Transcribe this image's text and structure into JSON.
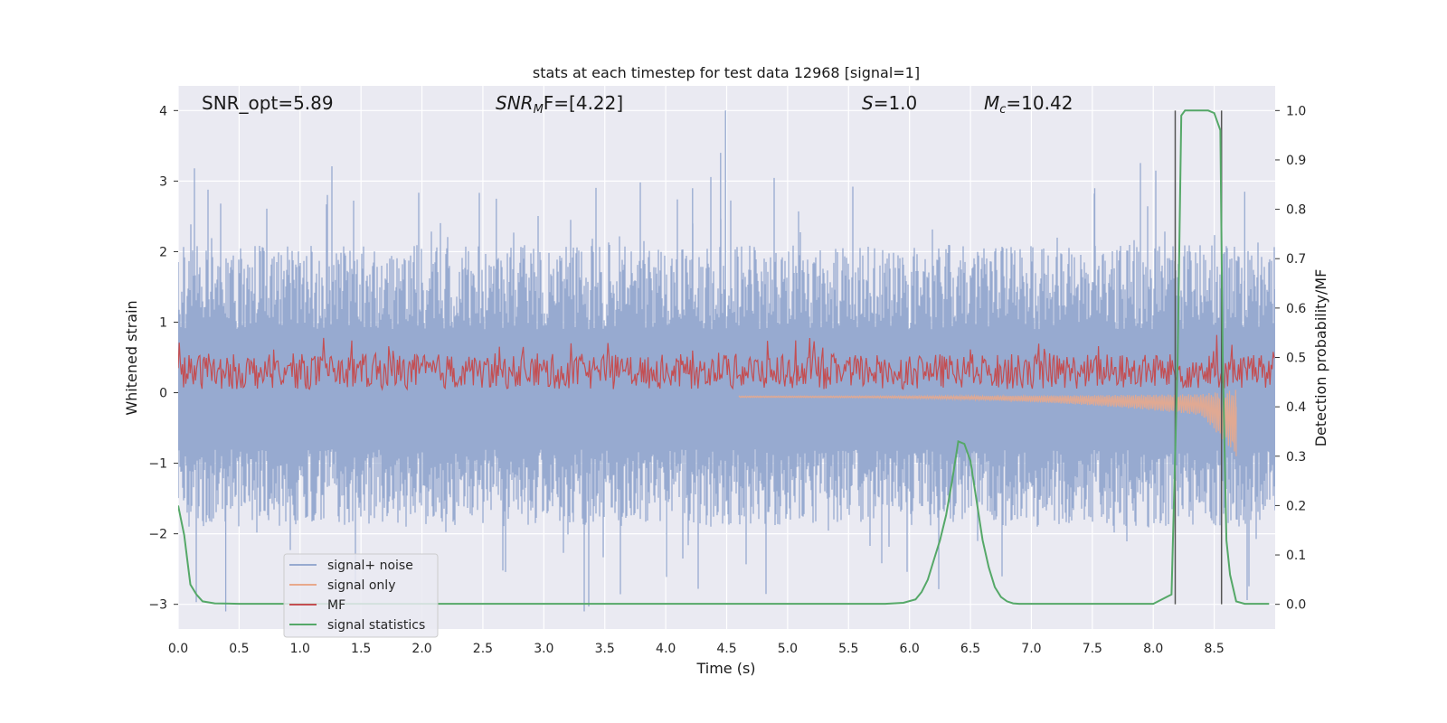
{
  "chart_data": {
    "type": "line",
    "title": "stats at each timestep for test data 12968 [signal=1]",
    "xlabel": "Time (s)",
    "ylabel_left": "Whitened strain",
    "ylabel_right": "Detection probability/MF",
    "xlim": [
      0.0,
      9.0
    ],
    "ylim_left": [
      -3.35,
      4.35
    ],
    "ylim_right": [
      -0.05,
      1.05
    ],
    "xticks": [
      "0.0",
      "0.5",
      "1.0",
      "1.5",
      "2.0",
      "2.5",
      "3.0",
      "3.5",
      "4.0",
      "4.5",
      "5.0",
      "5.5",
      "6.0",
      "6.5",
      "7.0",
      "7.5",
      "8.0",
      "8.5"
    ],
    "xtick_values": [
      0.0,
      0.5,
      1.0,
      1.5,
      2.0,
      2.5,
      3.0,
      3.5,
      4.0,
      4.5,
      5.0,
      5.5,
      6.0,
      6.5,
      7.0,
      7.5,
      8.0,
      8.5
    ],
    "yticks_left": [
      "4",
      "3",
      "2",
      "1",
      "0",
      "−1",
      "−2",
      "−3"
    ],
    "ytick_values_left": [
      4,
      3,
      2,
      1,
      0,
      -1,
      -2,
      -3
    ],
    "yticks_right": [
      "1.0",
      "0.9",
      "0.8",
      "0.7",
      "0.6",
      "0.5",
      "0.4",
      "0.3",
      "0.2",
      "0.1",
      "0.0"
    ],
    "ytick_values_right": [
      1.0,
      0.9,
      0.8,
      0.7,
      0.6,
      0.5,
      0.4,
      0.3,
      0.2,
      0.1,
      0.0
    ],
    "annotations": {
      "snr_opt": "SNR_opt=5.89",
      "snr_mf_base": "SNR",
      "snr_mf_sub": "M",
      "snr_mf_rest": "F=[4.22]",
      "s_italic": "S",
      "s_rest": "=1.0",
      "mc_base": "M",
      "mc_sub": "c",
      "mc_rest": "=10.42"
    },
    "vertical_markers": [
      8.18,
      8.56
    ],
    "series": [
      {
        "name": "signal+ noise",
        "color": "#97aad0",
        "kind": "noise",
        "amplitude_range": [
          -3.1,
          4.0
        ]
      },
      {
        "name": "signal only",
        "color": "#e8a98c",
        "kind": "chirp",
        "start": 4.6,
        "end": 8.68,
        "peak_amplitude": -0.9
      },
      {
        "name": "MF",
        "color": "#c44e52",
        "kind": "mf",
        "band": [
          0.0,
          0.85
        ]
      },
      {
        "name": "signal statistics",
        "color": "#55a868",
        "axis": "right",
        "x": [
          0.0,
          0.05,
          0.1,
          0.15,
          0.2,
          0.3,
          0.5,
          1.0,
          2.0,
          3.0,
          4.0,
          5.0,
          5.8,
          5.95,
          6.05,
          6.1,
          6.15,
          6.2,
          6.25,
          6.3,
          6.35,
          6.4,
          6.45,
          6.5,
          6.55,
          6.6,
          6.65,
          6.7,
          6.75,
          6.8,
          6.85,
          6.9,
          7.0,
          7.2,
          8.0,
          8.15,
          8.2,
          8.23,
          8.26,
          8.35,
          8.45,
          8.5,
          8.55,
          8.57,
          8.6,
          8.63,
          8.68,
          8.75,
          8.85,
          8.95
        ],
        "values": [
          0.2,
          0.14,
          0.04,
          0.02,
          0.006,
          0.002,
          0.001,
          0.001,
          0.001,
          0.001,
          0.001,
          0.001,
          0.001,
          0.003,
          0.01,
          0.025,
          0.05,
          0.09,
          0.13,
          0.18,
          0.25,
          0.33,
          0.325,
          0.29,
          0.21,
          0.13,
          0.075,
          0.035,
          0.015,
          0.006,
          0.002,
          0.001,
          0.001,
          0.001,
          0.001,
          0.02,
          0.5,
          0.99,
          1.0,
          1.0,
          1.0,
          0.995,
          0.96,
          0.5,
          0.13,
          0.06,
          0.006,
          0.001,
          0.001,
          0.001
        ]
      }
    ],
    "legend_position": "lower-left"
  }
}
